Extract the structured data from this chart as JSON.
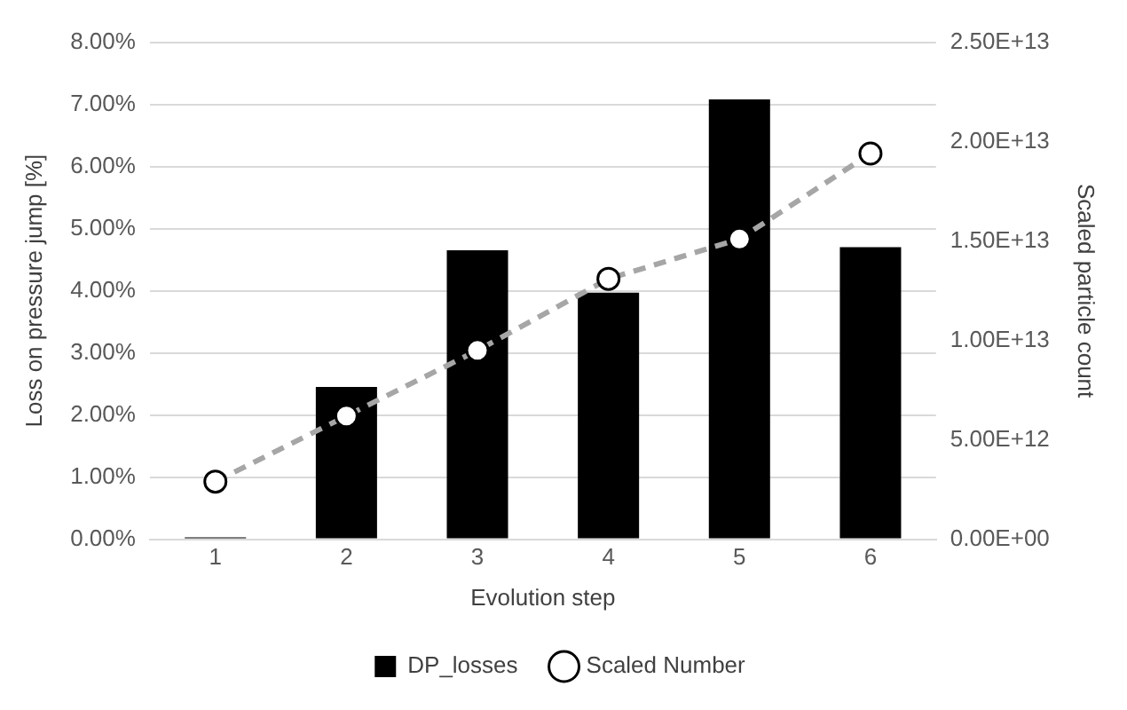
{
  "chart_data": {
    "type": "bar",
    "xlabel": "Evolution step",
    "ylabel": "Loss on pressure jump [%]",
    "y2label": "Scaled particle count",
    "categories": [
      "1",
      "2",
      "3",
      "4",
      "5",
      "6"
    ],
    "series": [
      {
        "name": "DP_losses",
        "color": "#000000",
        "values": [
          0.03,
          2.45,
          4.65,
          3.97,
          7.08,
          4.7
        ]
      },
      {
        "name": "Scaled Number",
        "type": "line",
        "axis": "y2",
        "color": "#a6a6a6",
        "marker": "circle",
        "line_style": "dashed",
        "values": [
          2900000000000.0,
          6200000000000.0,
          9500000000000.0,
          13100000000000.0,
          15100000000000.0,
          19400000000000.0
        ]
      }
    ],
    "ylim": [
      0,
      8
    ],
    "yticks": [
      {
        "value": 0,
        "label": "0.00%"
      },
      {
        "value": 1,
        "label": "1.00%"
      },
      {
        "value": 2,
        "label": "2.00%"
      },
      {
        "value": 3,
        "label": "3.00%"
      },
      {
        "value": 4,
        "label": "4.00%"
      },
      {
        "value": 5,
        "label": "5.00%"
      },
      {
        "value": 6,
        "label": "6.00%"
      },
      {
        "value": 7,
        "label": "7.00%"
      },
      {
        "value": 8,
        "label": "8.00%"
      }
    ],
    "y2lim": [
      0,
      25000000000000.0
    ],
    "y2ticks": [
      {
        "value": 0,
        "label": "0.00E+00"
      },
      {
        "value": 5000000000000.0,
        "label": "5.00E+12"
      },
      {
        "value": 10000000000000.0,
        "label": "1.00E+13"
      },
      {
        "value": 15000000000000.0,
        "label": "1.50E+13"
      },
      {
        "value": 20000000000000.0,
        "label": "2.00E+13"
      },
      {
        "value": 25000000000000.0,
        "label": "2.50E+13"
      }
    ],
    "grid": "y",
    "legend": "bottom"
  }
}
